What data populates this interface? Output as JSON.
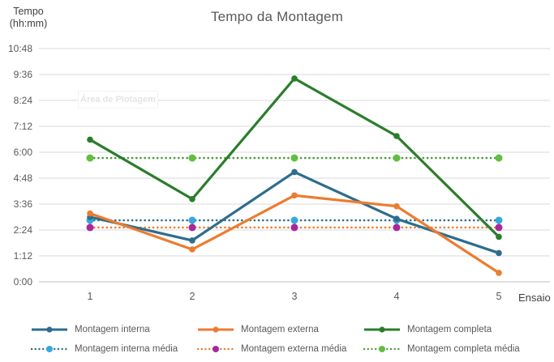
{
  "title": "Tempo da Montagem",
  "y_axis_title_line1": "Tempo",
  "y_axis_title_line2": "(hh:mm)",
  "x_axis_title": "Ensaio",
  "plot_area_tooltip": "Área de Plotagem",
  "colors": {
    "title_text": "#595959",
    "axis_text": "#595959",
    "axis_title_text": "#3F3F3F",
    "gridline": "#D9D9D9",
    "axis_line": "#BFBFBF",
    "watermark_text": "#E4E4E4",
    "watermark_border": "#F2F2F2"
  },
  "chart_data": {
    "type": "line",
    "title": "Tempo da Montagem",
    "xlabel": "Ensaio",
    "ylabel": "Tempo (hh:mm)",
    "categories": [
      "1",
      "2",
      "3",
      "4",
      "5"
    ],
    "y_ticks": [
      "0:00",
      "1:12",
      "2:24",
      "3:36",
      "4:48",
      "6:00",
      "7:12",
      "8:24",
      "9:36",
      "10:48"
    ],
    "y_tick_interval_minutes": 72,
    "ylim_minutes": [
      0,
      648
    ],
    "grid": true,
    "legend_position": "bottom",
    "series": [
      {
        "name": "Montagem interna",
        "style": "solid",
        "color": "#2D6D8D",
        "marker_color": "#2D6D8D",
        "values_hhmm": [
          "3:00",
          "1:55",
          "5:05",
          "2:55",
          "1:20"
        ],
        "values_min": [
          180,
          115,
          305,
          175,
          80
        ]
      },
      {
        "name": "Montagem externa",
        "style": "solid",
        "color": "#EC7C30",
        "marker_color": "#EC7C30",
        "values_hhmm": [
          "3:10",
          "1:30",
          "4:00",
          "3:30",
          "0:25"
        ],
        "values_min": [
          190,
          90,
          240,
          210,
          25
        ]
      },
      {
        "name": "Montagem completa",
        "style": "solid",
        "color": "#2B7D2B",
        "marker_color": "#2B7D2B",
        "values_hhmm": [
          "6:35",
          "3:50",
          "9:25",
          "6:45",
          "2:05"
        ],
        "values_min": [
          395,
          230,
          565,
          405,
          125
        ]
      },
      {
        "name": "Montagem interna média",
        "style": "dotted",
        "color": "#2D6D8D",
        "marker_color": "#35A8DF",
        "constant_hhmm": "2:51",
        "constant_min": 171
      },
      {
        "name": "Montagem externa média",
        "style": "dotted",
        "color": "#EC7C30",
        "marker_color": "#A8289B",
        "constant_hhmm": "2:31",
        "constant_min": 151
      },
      {
        "name": "Montagem completa média",
        "style": "dotted",
        "color": "#4E9D3E",
        "marker_color": "#63BE3F",
        "constant_hhmm": "5:44",
        "constant_min": 344
      }
    ]
  }
}
